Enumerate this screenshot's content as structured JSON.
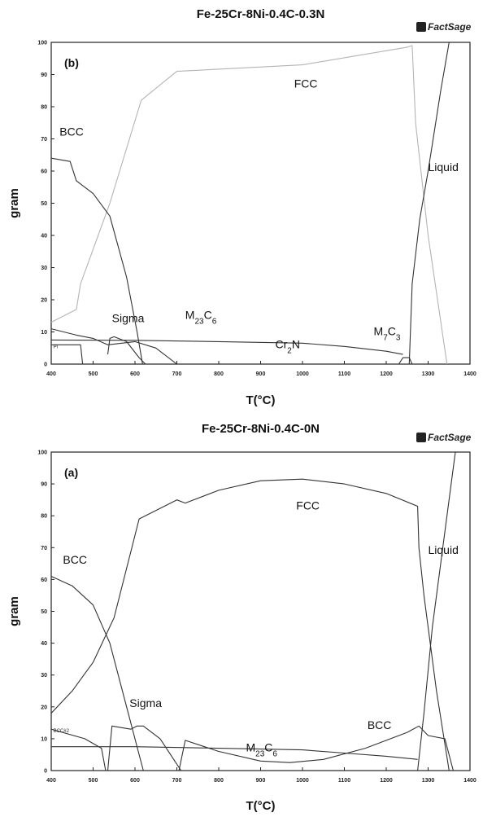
{
  "chart_data": [
    {
      "type": "line",
      "title": "Fe-25Cr-8Ni-0.4C-0.3N",
      "logo": "FactSage",
      "panel_label": "(b)",
      "xlabel": "T(°C)",
      "ylabel": "gram",
      "xlim": [
        400,
        1400
      ],
      "ylim": [
        0,
        100
      ],
      "xticks": [
        400,
        500,
        600,
        700,
        800,
        900,
        1000,
        1100,
        1200,
        1300,
        1400
      ],
      "yticks": [
        0,
        10,
        20,
        30,
        40,
        50,
        60,
        70,
        80,
        90,
        100
      ],
      "series": [
        {
          "name": "FCC",
          "color": "#b4b4b4",
          "x": [
            400,
            460,
            470,
            540,
            615,
            700,
            1000,
            1250,
            1262,
            1270,
            1300,
            1345
          ],
          "y": [
            13,
            17,
            25,
            50,
            82,
            91,
            93,
            98.5,
            99,
            75,
            40,
            0
          ]
        },
        {
          "name": "BCC",
          "color": "#333333",
          "x": [
            400,
            445,
            460,
            500,
            540,
            580,
            605,
            618
          ],
          "y": [
            64,
            63,
            57,
            53,
            46,
            27,
            10,
            0
          ]
        },
        {
          "name": "Liquid",
          "color": "#333333",
          "x": [
            1255,
            1262,
            1280,
            1300,
            1330,
            1350
          ],
          "y": [
            0,
            25,
            45,
            60,
            85,
            100
          ]
        },
        {
          "name": "Sigma",
          "color": "#333333",
          "x": [
            535,
            540,
            550,
            580,
            610,
            625
          ],
          "y": [
            3,
            8,
            8.5,
            7,
            2,
            0
          ]
        },
        {
          "name": "M23C6",
          "color": "#333333",
          "x": [
            400,
            600,
            800,
            1000,
            1100,
            1200,
            1240
          ],
          "y": [
            7.5,
            7.4,
            7,
            6.5,
            5.5,
            4,
            3
          ]
        },
        {
          "name": "Cr2N",
          "color": "#333333",
          "x": [
            400,
            460,
            500,
            535,
            600,
            650,
            700
          ],
          "y": [
            11,
            9,
            8,
            6,
            7,
            5,
            0
          ]
        },
        {
          "name": "M7C3",
          "color": "#333333",
          "x": [
            1230,
            1240,
            1255,
            1262
          ],
          "y": [
            0,
            2,
            2,
            0
          ]
        },
        {
          "name": "Pi",
          "color": "#333333",
          "x": [
            400,
            470,
            475
          ],
          "y": [
            6,
            6,
            0
          ]
        }
      ],
      "annotations": [
        {
          "text": "FCC",
          "x": 980,
          "y": 86
        },
        {
          "text": "BCC",
          "x": 420,
          "y": 71
        },
        {
          "text": "Liquid",
          "x": 1300,
          "y": 60
        },
        {
          "text": "Sigma",
          "x": 545,
          "y": 13
        },
        {
          "text": "M23C6",
          "x": 720,
          "y": 14
        },
        {
          "text": "Cr2N",
          "x": 935,
          "y": 5
        },
        {
          "text": "M7C3",
          "x": 1170,
          "y": 9
        },
        {
          "text": "Pi",
          "x": 405,
          "y": 5
        }
      ]
    },
    {
      "type": "line",
      "title": "Fe-25Cr-8Ni-0.4C-0N",
      "logo": "FactSage",
      "panel_label": "(a)",
      "xlabel": "T(°C)",
      "ylabel": "gram",
      "xlim": [
        400,
        1400
      ],
      "ylim": [
        0,
        100
      ],
      "xticks": [
        400,
        500,
        600,
        700,
        800,
        900,
        1000,
        1100,
        1200,
        1300,
        1400
      ],
      "yticks": [
        0,
        10,
        20,
        30,
        40,
        50,
        60,
        70,
        80,
        90,
        100
      ],
      "series": [
        {
          "name": "FCC",
          "color": "#333333",
          "x": [
            400,
            450,
            500,
            550,
            610,
            700,
            720,
            800,
            900,
            1000,
            1100,
            1200,
            1275,
            1278,
            1290,
            1320,
            1350
          ],
          "y": [
            18,
            25,
            34,
            48,
            79,
            85,
            84,
            88,
            91,
            91.5,
            90,
            87,
            83,
            70,
            55,
            25,
            0
          ]
        },
        {
          "name": "BCC",
          "color": "#333333",
          "x": [
            400,
            450,
            500,
            540,
            580,
            610,
            620
          ],
          "y": [
            61,
            58,
            52,
            40,
            20,
            5,
            0
          ]
        },
        {
          "name": "Liquid",
          "color": "#333333",
          "x": [
            1275,
            1290,
            1310,
            1340,
            1365
          ],
          "y": [
            0,
            18,
            45,
            75,
            100
          ]
        },
        {
          "name": "Sigma",
          "color": "#333333",
          "x": [
            535,
            545,
            590,
            605,
            620,
            660,
            700,
            710
          ],
          "y": [
            0,
            14,
            13,
            14,
            14,
            10,
            2,
            0
          ]
        },
        {
          "name": "M23C6",
          "color": "#333333",
          "x": [
            400,
            600,
            800,
            1000,
            1100,
            1200,
            1275
          ],
          "y": [
            7.5,
            7.5,
            7,
            6.5,
            5.5,
            4.5,
            3.5
          ]
        },
        {
          "name": "BCC",
          "color": "#333333",
          "x": [
            705,
            720,
            800,
            900,
            970,
            1050,
            1150,
            1250,
            1278,
            1300,
            1340,
            1360
          ],
          "y": [
            0,
            9.5,
            6,
            3,
            2.5,
            3.5,
            7,
            12,
            14,
            11,
            10,
            0
          ]
        },
        {
          "name": "BCC#2",
          "color": "#333333",
          "x": [
            400,
            480,
            520,
            530
          ],
          "y": [
            13,
            10,
            7,
            0
          ]
        }
      ],
      "annotations": [
        {
          "text": "FCC",
          "x": 985,
          "y": 82
        },
        {
          "text": "BCC",
          "x": 428,
          "y": 65
        },
        {
          "text": "Liquid",
          "x": 1300,
          "y": 68
        },
        {
          "text": "Sigma",
          "x": 587,
          "y": 20
        },
        {
          "text": "M23C6",
          "x": 865,
          "y": 6
        },
        {
          "text": "BCC",
          "x": 1155,
          "y": 13
        },
        {
          "text": "BCC#2",
          "x": 405,
          "y": 12
        }
      ]
    }
  ]
}
